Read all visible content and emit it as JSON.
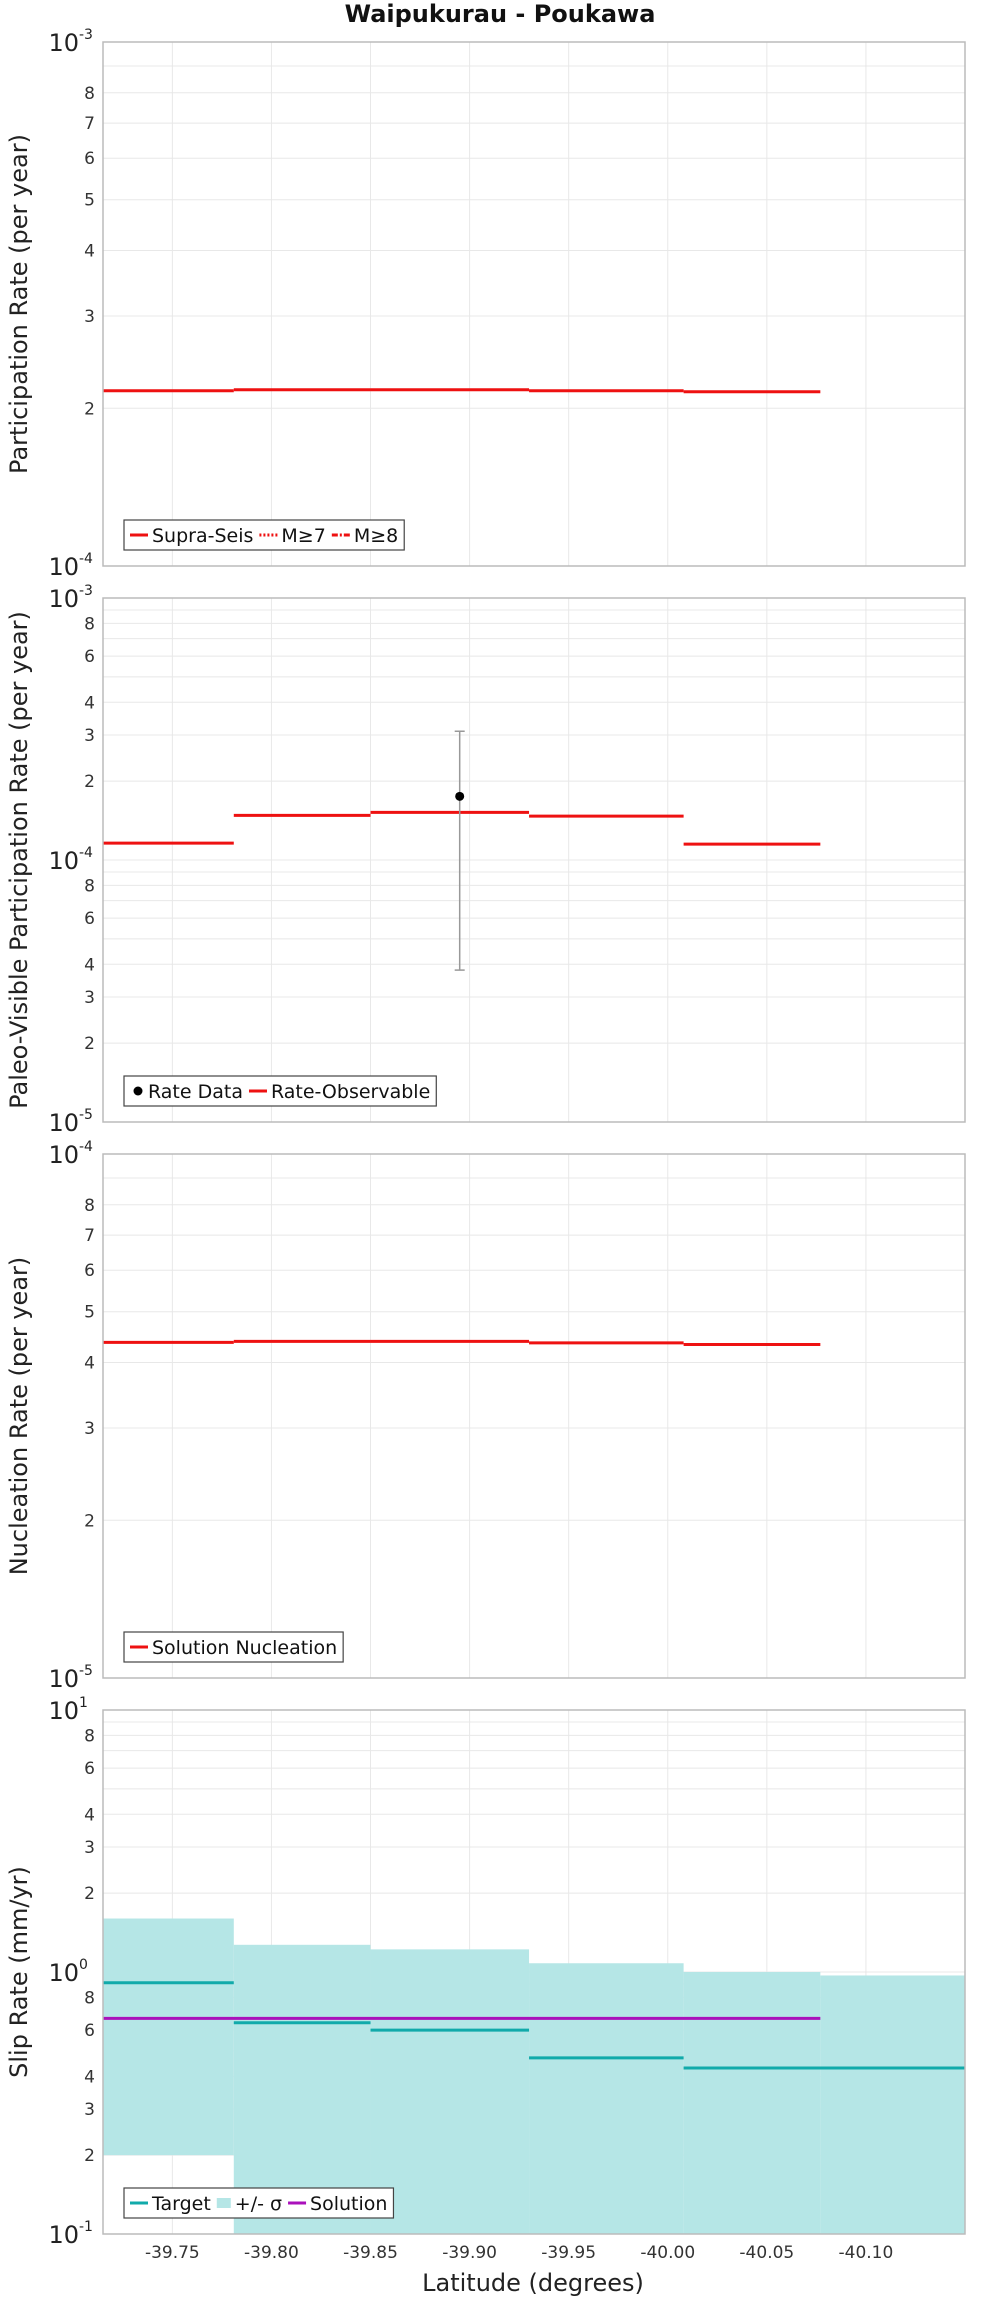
{
  "title": "Waipukurau - Poukawa",
  "xlabel": "Latitude (degrees)",
  "x_ticks": [
    "-39.75",
    "-39.80",
    "-39.85",
    "-39.90",
    "-39.95",
    "-40.00",
    "-40.05",
    "-40.10"
  ],
  "colors": {
    "red": "#ee1111",
    "teal": "#11aaaa",
    "purple": "#aa11bb",
    "band": "#b5e6e6",
    "grid": "#e8e8e8",
    "frame": "#bbbbbb"
  },
  "chart_data": [
    {
      "type": "line",
      "title": "Waipukurau - Poukawa",
      "ylabel": "Participation Rate (per year)",
      "xlabel": "Latitude (degrees)",
      "xlim": [
        -39.715,
        -40.15
      ],
      "ylim": [
        0.0001,
        0.001
      ],
      "yscale": "log",
      "y_major_ticks": [
        {
          "mantissa": "10",
          "exp": "-3"
        },
        {
          "mantissa": "10",
          "exp": "-4"
        }
      ],
      "y_minor_ticks": [
        "8",
        "7",
        "6",
        "5",
        "4",
        "3",
        "2"
      ],
      "legend": [
        {
          "label": "Supra-Seis",
          "style": "solid",
          "color": "#ee1111"
        },
        {
          "label": "M≥7",
          "style": "dotted",
          "color": "#ee1111"
        },
        {
          "label": "M≥8",
          "style": "dashdot",
          "color": "#ee1111"
        }
      ],
      "series": [
        {
          "name": "Supra-Seis",
          "segments": [
            {
              "x": [
                -39.715,
                -39.781
              ],
              "y": 0.000216
            },
            {
              "x": [
                -39.781,
                -39.85
              ],
              "y": 0.000217
            },
            {
              "x": [
                -39.85,
                -39.93
              ],
              "y": 0.000217
            },
            {
              "x": [
                -39.93,
                -40.008
              ],
              "y": 0.000216
            },
            {
              "x": [
                -40.008,
                -40.077
              ],
              "y": 0.000215
            }
          ]
        }
      ]
    },
    {
      "type": "line",
      "ylabel": "Paleo-Visible Participation Rate (per year)",
      "xlim": [
        -39.715,
        -40.15
      ],
      "ylim": [
        1e-05,
        0.001
      ],
      "yscale": "log",
      "y_major_ticks": [
        {
          "mantissa": "10",
          "exp": "-3"
        },
        {
          "mantissa": "10",
          "exp": "-4"
        },
        {
          "mantissa": "10",
          "exp": "-5"
        }
      ],
      "y_minor_ticks": [
        "8",
        "6",
        "4",
        "3",
        "2",
        "8",
        "6",
        "4",
        "3",
        "2"
      ],
      "legend": [
        {
          "label": "Rate Data",
          "style": "point",
          "color": "#000000"
        },
        {
          "label": "Rate-Observable",
          "style": "solid",
          "color": "#ee1111"
        }
      ],
      "series": [
        {
          "name": "Rate-Observable",
          "segments": [
            {
              "x": [
                -39.715,
                -39.781
              ],
              "y": 0.000116
            },
            {
              "x": [
                -39.781,
                -39.85
              ],
              "y": 0.000148
            },
            {
              "x": [
                -39.85,
                -39.93
              ],
              "y": 0.000152
            },
            {
              "x": [
                -39.93,
                -40.008
              ],
              "y": 0.000147
            },
            {
              "x": [
                -40.008,
                -40.077
              ],
              "y": 0.000115
            }
          ]
        }
      ],
      "points": [
        {
          "name": "Rate Data",
          "x": -39.895,
          "y": 0.000175,
          "y_low": 3.8e-05,
          "y_high": 0.00031
        }
      ]
    },
    {
      "type": "line",
      "ylabel": "Nucleation Rate (per year)",
      "xlim": [
        -39.715,
        -40.15
      ],
      "ylim": [
        1e-05,
        0.0001
      ],
      "yscale": "log",
      "y_major_ticks": [
        {
          "mantissa": "10",
          "exp": "-4"
        },
        {
          "mantissa": "10",
          "exp": "-5"
        }
      ],
      "y_minor_ticks": [
        "8",
        "7",
        "6",
        "5",
        "4",
        "3",
        "2"
      ],
      "legend": [
        {
          "label": "Solution Nucleation",
          "style": "solid",
          "color": "#ee1111"
        }
      ],
      "series": [
        {
          "name": "Solution Nucleation",
          "segments": [
            {
              "x": [
                -39.715,
                -39.781
              ],
              "y": 4.37e-05
            },
            {
              "x": [
                -39.781,
                -39.85
              ],
              "y": 4.39e-05
            },
            {
              "x": [
                -39.85,
                -39.93
              ],
              "y": 4.39e-05
            },
            {
              "x": [
                -39.93,
                -40.008
              ],
              "y": 4.36e-05
            },
            {
              "x": [
                -40.008,
                -40.077
              ],
              "y": 4.33e-05
            }
          ]
        }
      ]
    },
    {
      "type": "area",
      "ylabel": "Slip Rate (mm/yr)",
      "xlim": [
        -39.715,
        -40.15
      ],
      "ylim": [
        0.1,
        10
      ],
      "yscale": "log",
      "y_major_ticks": [
        {
          "mantissa": "10",
          "exp": "1"
        },
        {
          "mantissa": "10",
          "exp": "0"
        },
        {
          "mantissa": "10",
          "exp": "-1"
        }
      ],
      "y_minor_ticks": [
        "8",
        "6",
        "4",
        "3",
        "2",
        "8",
        "6",
        "4",
        "3",
        "2"
      ],
      "legend": [
        {
          "label": "Target",
          "style": "solid",
          "color": "#11aaaa"
        },
        {
          "label": "+/- σ",
          "style": "band",
          "color": "#b5e6e6"
        },
        {
          "label": "Solution",
          "style": "solid",
          "color": "#aa11bb"
        }
      ],
      "band": [
        {
          "x": [
            -39.715,
            -39.781
          ],
          "low": 0.2,
          "high": 1.6
        },
        {
          "x": [
            -39.781,
            -39.85
          ],
          "low": 0.1,
          "high": 1.27
        },
        {
          "x": [
            -39.85,
            -39.93
          ],
          "low": 0.1,
          "high": 1.22
        },
        {
          "x": [
            -39.93,
            -40.008
          ],
          "low": 0.1,
          "high": 1.08
        },
        {
          "x": [
            -40.008,
            -40.077
          ],
          "low": 0.1,
          "high": 1.0
        },
        {
          "x": [
            -40.077,
            -40.15
          ],
          "low": 0.1,
          "high": 0.97
        }
      ],
      "series": [
        {
          "name": "Target",
          "color": "#11aaaa",
          "segments": [
            {
              "x": [
                -39.715,
                -39.781
              ],
              "y": 0.91
            },
            {
              "x": [
                -39.781,
                -39.85
              ],
              "y": 0.64
            },
            {
              "x": [
                -39.85,
                -39.93
              ],
              "y": 0.6
            },
            {
              "x": [
                -39.93,
                -40.008
              ],
              "y": 0.47
            },
            {
              "x": [
                -40.008,
                -40.15
              ],
              "y": 0.43
            }
          ]
        },
        {
          "name": "Solution",
          "color": "#aa11bb",
          "segments": [
            {
              "x": [
                -39.715,
                -40.077
              ],
              "y": 0.665
            }
          ]
        }
      ]
    }
  ]
}
